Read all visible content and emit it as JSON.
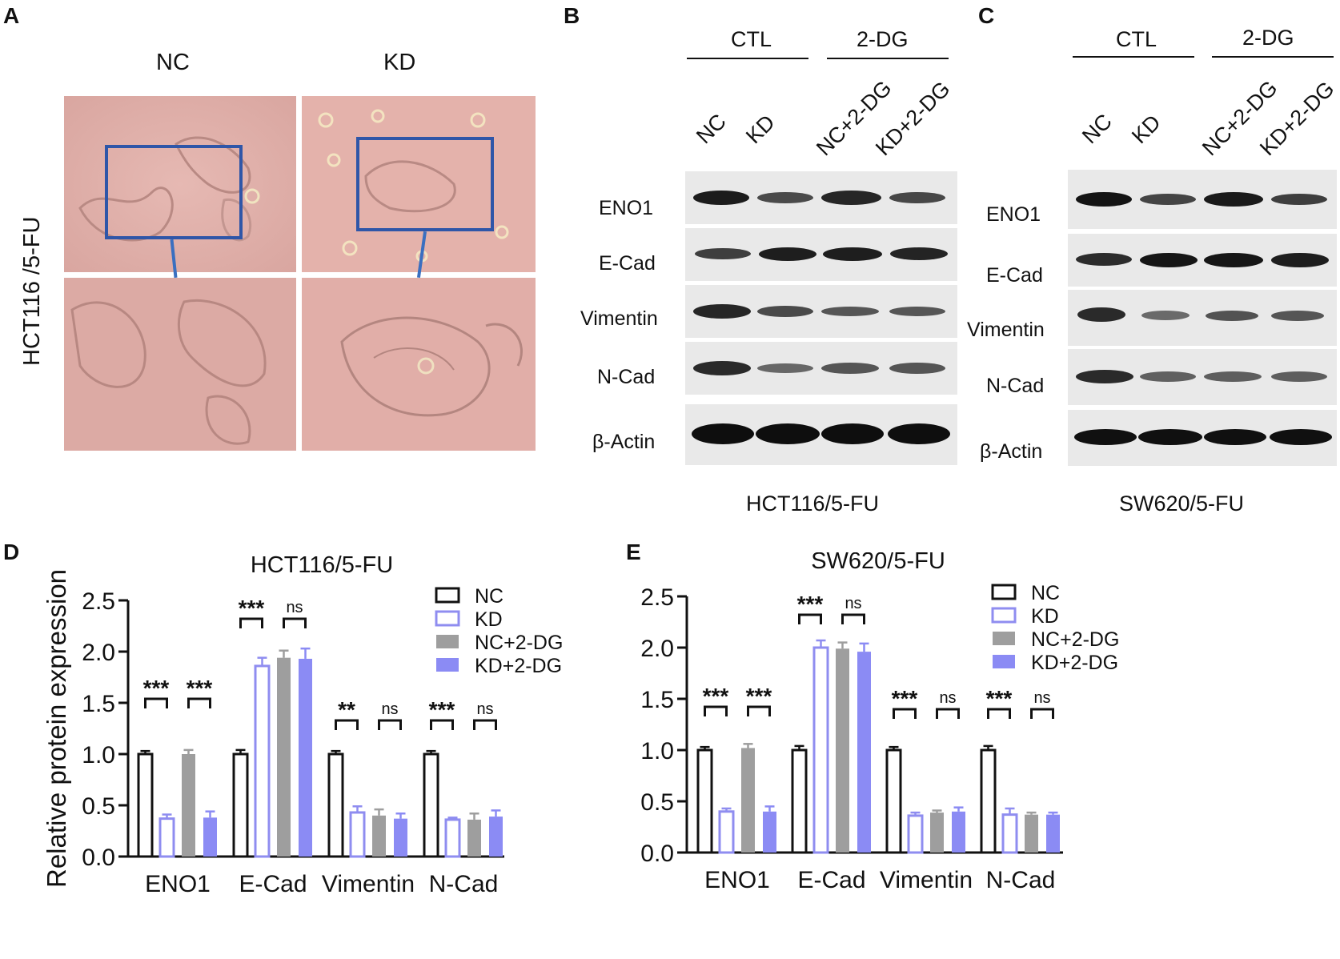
{
  "panels": {
    "A": "A",
    "B": "B",
    "C": "C",
    "D": "D",
    "E": "E"
  },
  "panel_a": {
    "col_nc": "NC",
    "col_kd": "KD",
    "side_label": "HCT116 /5-FU"
  },
  "panel_b": {
    "group_ctl": "CTL",
    "group_2dg": "2-DG",
    "lanes": [
      "NC",
      "KD",
      "NC+2-DG",
      "KD+2-DG"
    ],
    "rows": [
      "ENO1",
      "E-Cad",
      "Vimentin",
      "N-Cad",
      "β-Actin"
    ],
    "caption": "HCT116/5-FU"
  },
  "panel_c": {
    "group_ctl": "CTL",
    "group_2dg": "2-DG",
    "lanes": [
      "NC",
      "KD",
      "NC+2-DG",
      "KD+2-DG"
    ],
    "rows": [
      "ENO1",
      "E-Cad",
      "Vimentin",
      "N-Cad",
      "β-Actin"
    ],
    "caption": "SW620/5-FU"
  },
  "colors": {
    "nc": "#111111",
    "kd": "#8f8df0",
    "nc2dg": "#9e9e9e",
    "kd2dg": "#8b8bf4",
    "zoom_box": "#2f56a8"
  },
  "chart_data": [
    {
      "type": "bar",
      "title": "HCT116/5-FU",
      "ylabel": "Relative protein expression",
      "xlabel": "",
      "ylim": [
        0,
        2.5
      ],
      "yticks": [
        "0.0",
        "0.5",
        "1.0",
        "1.5",
        "2.0",
        "2.5"
      ],
      "categories": [
        "ENO1",
        "E-Cad",
        "Vimentin",
        "N-Cad"
      ],
      "series": [
        {
          "name": "NC",
          "style": "hollow",
          "color": "#111111",
          "values": [
            1.0,
            1.0,
            1.0,
            1.0
          ],
          "errors": [
            0.03,
            0.04,
            0.03,
            0.03
          ]
        },
        {
          "name": "KD",
          "style": "hollow",
          "color": "#8f8df0",
          "values": [
            0.37,
            1.86,
            0.43,
            0.36
          ],
          "errors": [
            0.04,
            0.08,
            0.06,
            0.02
          ]
        },
        {
          "name": "NC+2-DG",
          "style": "filled",
          "color": "#9e9e9e",
          "values": [
            1.0,
            1.94,
            0.4,
            0.36
          ],
          "errors": [
            0.04,
            0.07,
            0.06,
            0.06
          ]
        },
        {
          "name": "KD+2-DG",
          "style": "filled",
          "color": "#8b8bf4",
          "values": [
            0.38,
            1.93,
            0.37,
            0.39
          ],
          "errors": [
            0.06,
            0.1,
            0.05,
            0.06
          ]
        }
      ],
      "significance": [
        {
          "left": "***",
          "right": "***"
        },
        {
          "left": "***",
          "right": "ns"
        },
        {
          "left": "**",
          "right": "ns"
        },
        {
          "left": "***",
          "right": "ns"
        }
      ],
      "legend": "top-right"
    },
    {
      "type": "bar",
      "title": "SW620/5-FU",
      "ylabel": "Relative protein expression",
      "xlabel": "",
      "ylim": [
        0,
        2.5
      ],
      "yticks": [
        "0.0",
        "0.5",
        "1.0",
        "1.5",
        "2.0",
        "2.5"
      ],
      "categories": [
        "ENO1",
        "E-Cad",
        "Vimentin",
        "N-Cad"
      ],
      "series": [
        {
          "name": "NC",
          "style": "hollow",
          "color": "#111111",
          "values": [
            1.0,
            1.0,
            1.0,
            1.0
          ],
          "errors": [
            0.03,
            0.04,
            0.03,
            0.04
          ]
        },
        {
          "name": "KD",
          "style": "hollow",
          "color": "#8f8df0",
          "values": [
            0.4,
            2.0,
            0.36,
            0.37
          ],
          "errors": [
            0.03,
            0.07,
            0.03,
            0.06
          ]
        },
        {
          "name": "NC+2-DG",
          "style": "filled",
          "color": "#9e9e9e",
          "values": [
            1.02,
            1.99,
            0.39,
            0.37
          ],
          "errors": [
            0.04,
            0.06,
            0.02,
            0.02
          ]
        },
        {
          "name": "KD+2-DG",
          "style": "filled",
          "color": "#8b8bf4",
          "values": [
            0.4,
            1.96,
            0.4,
            0.37
          ],
          "errors": [
            0.05,
            0.08,
            0.04,
            0.02
          ]
        }
      ],
      "significance": [
        {
          "left": "***",
          "right": "***"
        },
        {
          "left": "***",
          "right": "ns"
        },
        {
          "left": "***",
          "right": "ns"
        },
        {
          "left": "***",
          "right": "ns"
        }
      ],
      "legend": "top-right"
    }
  ]
}
